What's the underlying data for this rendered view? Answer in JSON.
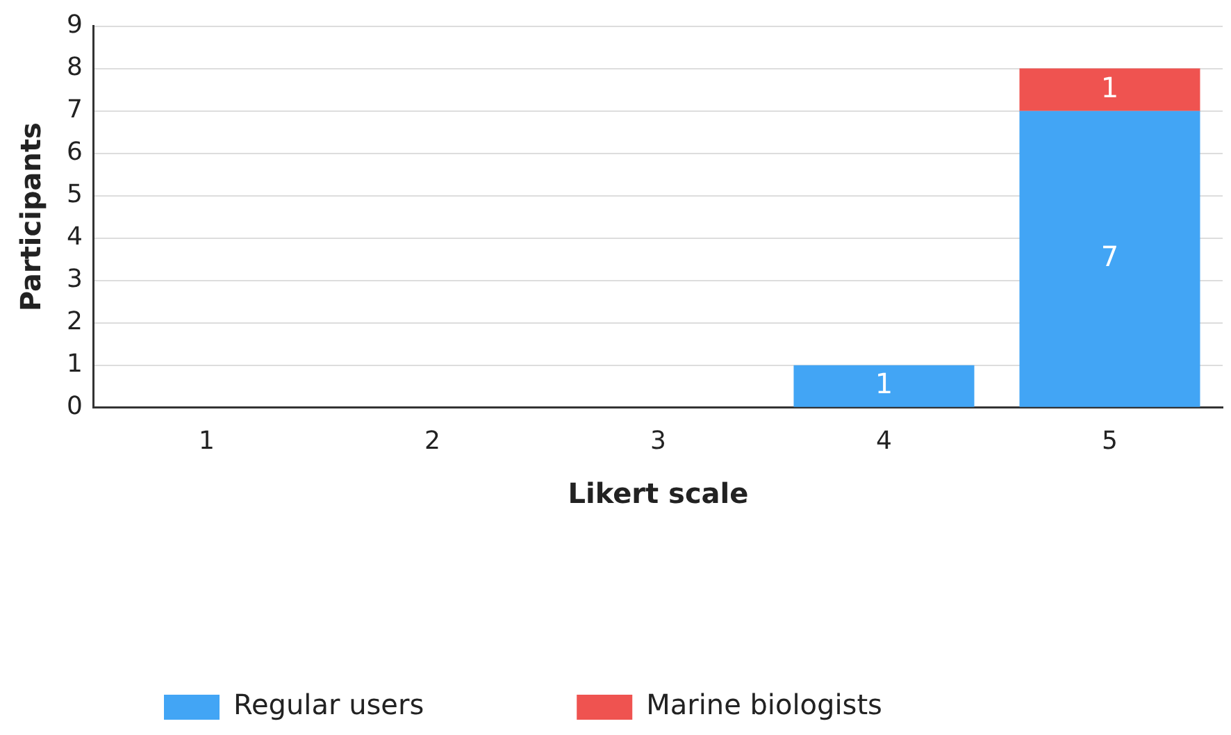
{
  "chart_data": {
    "type": "bar",
    "stacked": true,
    "xlabel": "Likert scale",
    "ylabel": "Participants",
    "categories": [
      "1",
      "2",
      "3",
      "4",
      "5"
    ],
    "series": [
      {
        "name": "Regular users",
        "color": "#42a5f5",
        "values": [
          0,
          0,
          0,
          1,
          7
        ],
        "value_labels": [
          null,
          null,
          null,
          "1",
          "7"
        ]
      },
      {
        "name": "Marine biologists",
        "color": "#ef5350",
        "values": [
          0,
          0,
          0,
          0,
          1
        ],
        "value_labels": [
          null,
          null,
          null,
          null,
          "1"
        ]
      }
    ],
    "ylim": [
      0,
      9
    ],
    "yticks": [
      0,
      1,
      2,
      3,
      4,
      5,
      6,
      7,
      8,
      9
    ],
    "grid": "y",
    "legend": "bottom left"
  }
}
